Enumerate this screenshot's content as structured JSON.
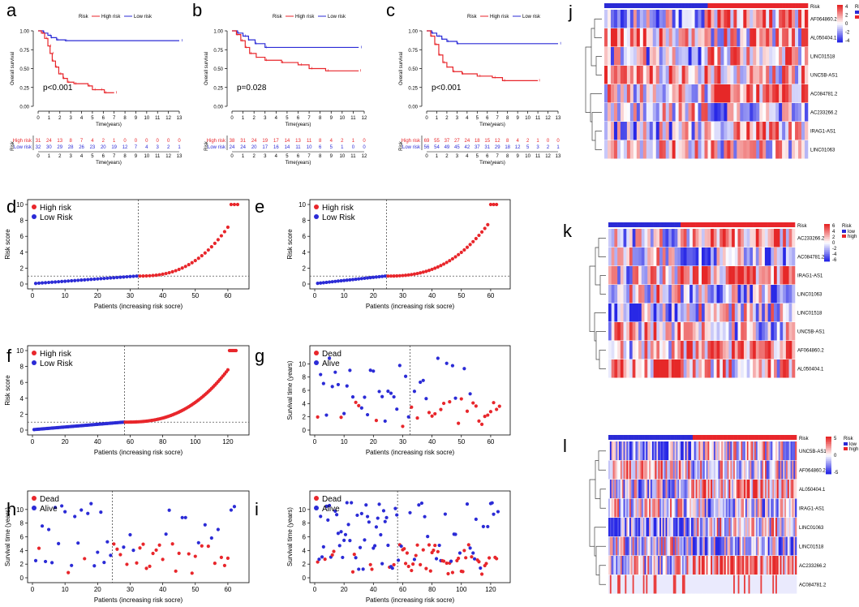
{
  "panel_labels": [
    "a",
    "b",
    "c",
    "d",
    "e",
    "f",
    "g",
    "h",
    "i",
    "j",
    "k",
    "l"
  ],
  "km_common": {
    "xlabel": "Time(years)",
    "ylabel": "Overall survival",
    "risk_label": "Risk",
    "legend_title": "Risk",
    "high_label": "High risk",
    "low_label": "Low risk",
    "high_color": "#e8262b",
    "low_color": "#2b2bd6",
    "yticks": [
      "0.00",
      "0.25",
      "0.50",
      "0.75",
      "1.00"
    ]
  },
  "scatter_common": {
    "xlabel": "Patients (increasing risk socre)",
    "risk_ylabel": "Risk score",
    "surv_ylabel": "Survival time (years)",
    "high_label": "High risk",
    "low_label": "Low Risk",
    "dead_label": "Dead",
    "alive_label": "Alive"
  },
  "chart_data": [
    {
      "id": "a",
      "type": "line",
      "pval": "p<0.001",
      "xmax": 13,
      "high_curve": [
        [
          0,
          1
        ],
        [
          0.3,
          0.97
        ],
        [
          0.6,
          0.9
        ],
        [
          0.9,
          0.8
        ],
        [
          1.1,
          0.7
        ],
        [
          1.3,
          0.6
        ],
        [
          1.6,
          0.52
        ],
        [
          1.9,
          0.43
        ],
        [
          2.3,
          0.37
        ],
        [
          2.7,
          0.32
        ],
        [
          3.3,
          0.3
        ],
        [
          4.6,
          0.27
        ],
        [
          5,
          0.22
        ],
        [
          5.8,
          0.22
        ],
        [
          6.1,
          0.18
        ],
        [
          7,
          0.18
        ]
      ],
      "low_curve": [
        [
          0,
          1
        ],
        [
          0.5,
          0.97
        ],
        [
          0.9,
          0.94
        ],
        [
          1.2,
          0.91
        ],
        [
          1.7,
          0.88
        ],
        [
          2.5,
          0.87
        ],
        [
          13,
          0.87
        ]
      ],
      "high_counts": [
        "31",
        "24",
        "13",
        "8",
        "7",
        "4",
        "2",
        "1",
        "0",
        "0",
        "0",
        "0",
        "0",
        "0"
      ],
      "low_counts": [
        "32",
        "30",
        "29",
        "28",
        "26",
        "23",
        "20",
        "19",
        "12",
        "7",
        "4",
        "3",
        "2",
        "1"
      ]
    },
    {
      "id": "b",
      "type": "line",
      "pval": "p=0.028",
      "xmax": 12,
      "high_curve": [
        [
          0,
          1
        ],
        [
          0.4,
          0.95
        ],
        [
          0.8,
          0.87
        ],
        [
          1.2,
          0.78
        ],
        [
          1.6,
          0.7
        ],
        [
          2.2,
          0.65
        ],
        [
          3,
          0.61
        ],
        [
          4.5,
          0.58
        ],
        [
          6,
          0.55
        ],
        [
          7,
          0.5
        ],
        [
          8.5,
          0.47
        ],
        [
          11.5,
          0.47
        ]
      ],
      "low_curve": [
        [
          0,
          1
        ],
        [
          0.5,
          0.97
        ],
        [
          1,
          0.93
        ],
        [
          1.5,
          0.88
        ],
        [
          2.1,
          0.83
        ],
        [
          3,
          0.78
        ],
        [
          11.5,
          0.78
        ]
      ],
      "high_counts": [
        "38",
        "31",
        "24",
        "19",
        "17",
        "14",
        "13",
        "11",
        "8",
        "4",
        "2",
        "1",
        "0"
      ],
      "low_counts": [
        "24",
        "24",
        "20",
        "17",
        "16",
        "14",
        "11",
        "10",
        "6",
        "5",
        "1",
        "0",
        "0"
      ]
    },
    {
      "id": "c",
      "type": "line",
      "pval": "p<0.001",
      "xmax": 13,
      "high_curve": [
        [
          0,
          1
        ],
        [
          0.4,
          0.93
        ],
        [
          0.8,
          0.82
        ],
        [
          1.2,
          0.68
        ],
        [
          1.6,
          0.58
        ],
        [
          2,
          0.52
        ],
        [
          2.6,
          0.46
        ],
        [
          3.5,
          0.43
        ],
        [
          5,
          0.4
        ],
        [
          6.5,
          0.38
        ],
        [
          7.5,
          0.34
        ],
        [
          11,
          0.34
        ]
      ],
      "low_curve": [
        [
          0,
          1
        ],
        [
          0.5,
          0.97
        ],
        [
          1,
          0.93
        ],
        [
          1.5,
          0.89
        ],
        [
          2,
          0.86
        ],
        [
          3,
          0.83
        ],
        [
          13,
          0.83
        ]
      ],
      "high_counts": [
        "69",
        "55",
        "37",
        "27",
        "24",
        "18",
        "15",
        "12",
        "8",
        "4",
        "2",
        "1",
        "0",
        "0"
      ],
      "low_counts": [
        "56",
        "54",
        "49",
        "45",
        "42",
        "37",
        "31",
        "29",
        "18",
        "12",
        "5",
        "3",
        "2",
        "1"
      ]
    },
    {
      "id": "d",
      "type": "scatter",
      "n": 63,
      "cut": 32,
      "ymax": 10,
      "yticks": [
        "0",
        "2",
        "4",
        "6",
        "8",
        "10"
      ],
      "xticks": [
        "0",
        "10",
        "20",
        "30",
        "40",
        "50",
        "60"
      ]
    },
    {
      "id": "e",
      "type": "scatter",
      "n": 62,
      "cut": 24,
      "ymax": 10,
      "yticks": [
        "0",
        "2",
        "4",
        "6",
        "8",
        "10"
      ],
      "xticks": [
        "0",
        "10",
        "20",
        "30",
        "40",
        "50",
        "60"
      ]
    },
    {
      "id": "f",
      "type": "scatter",
      "n": 125,
      "cut": 56,
      "ymax": 10,
      "yticks": [
        "0",
        "2",
        "4",
        "6",
        "8",
        "10"
      ],
      "xticks": [
        "0",
        "20",
        "40",
        "60",
        "80",
        "100",
        "120"
      ]
    },
    {
      "id": "g",
      "type": "scatter",
      "n": 63,
      "cut": 32,
      "ymax": 12,
      "yticks": [
        "0",
        "2",
        "4",
        "6",
        "8",
        "10"
      ],
      "xticks": [
        "0",
        "10",
        "20",
        "30",
        "40",
        "50",
        "60"
      ]
    },
    {
      "id": "h",
      "type": "scatter",
      "n": 62,
      "cut": 24,
      "ymax": 12,
      "yticks": [
        "0",
        "2",
        "4",
        "6",
        "8",
        "10"
      ],
      "xticks": [
        "0",
        "10",
        "20",
        "30",
        "40",
        "50",
        "60"
      ]
    },
    {
      "id": "i",
      "type": "scatter",
      "n": 125,
      "cut": 56,
      "ymax": 12,
      "yticks": [
        "0",
        "2",
        "4",
        "6",
        "8",
        "10"
      ],
      "xticks": [
        "0",
        "20",
        "40",
        "60",
        "80",
        "100",
        "120"
      ]
    },
    {
      "id": "j",
      "type": "heatmap",
      "genes": [
        "AF064860.2",
        "AL050404.1",
        "LINC01518",
        "UNC5B-AS1",
        "AC084781.2",
        "AC233266.2",
        "IRAG1-AS1",
        "LINC01063"
      ],
      "cols": 63,
      "low_n": 32,
      "scale": [
        "4",
        "2",
        "0",
        "-2",
        "-4"
      ]
    },
    {
      "id": "k",
      "type": "heatmap",
      "genes": [
        "AC233266.2",
        "AC084781.2",
        "IRAG1-AS1",
        "LINC01063",
        "LINC01518",
        "UNC5B-AS1",
        "AF064860.2",
        "AL050404.1"
      ],
      "cols": 62,
      "low_n": 24,
      "scale": [
        "6",
        "4",
        "2",
        "0",
        "-2",
        "-4",
        "-6"
      ]
    },
    {
      "id": "l",
      "type": "heatmap",
      "genes": [
        "UNC5B-AS1",
        "AF064860.2",
        "AL050404.1",
        "IRAG1-AS1",
        "LINC01063",
        "LINC01518",
        "AC233266.2",
        "AC084781.2"
      ],
      "cols": 125,
      "low_n": 56,
      "scale": [
        "5",
        "0",
        "-5"
      ]
    }
  ],
  "heat_legend": {
    "title": "Risk",
    "low": "low",
    "high": "high",
    "low_color": "#2b2bd6",
    "high_color": "#e8262b"
  }
}
